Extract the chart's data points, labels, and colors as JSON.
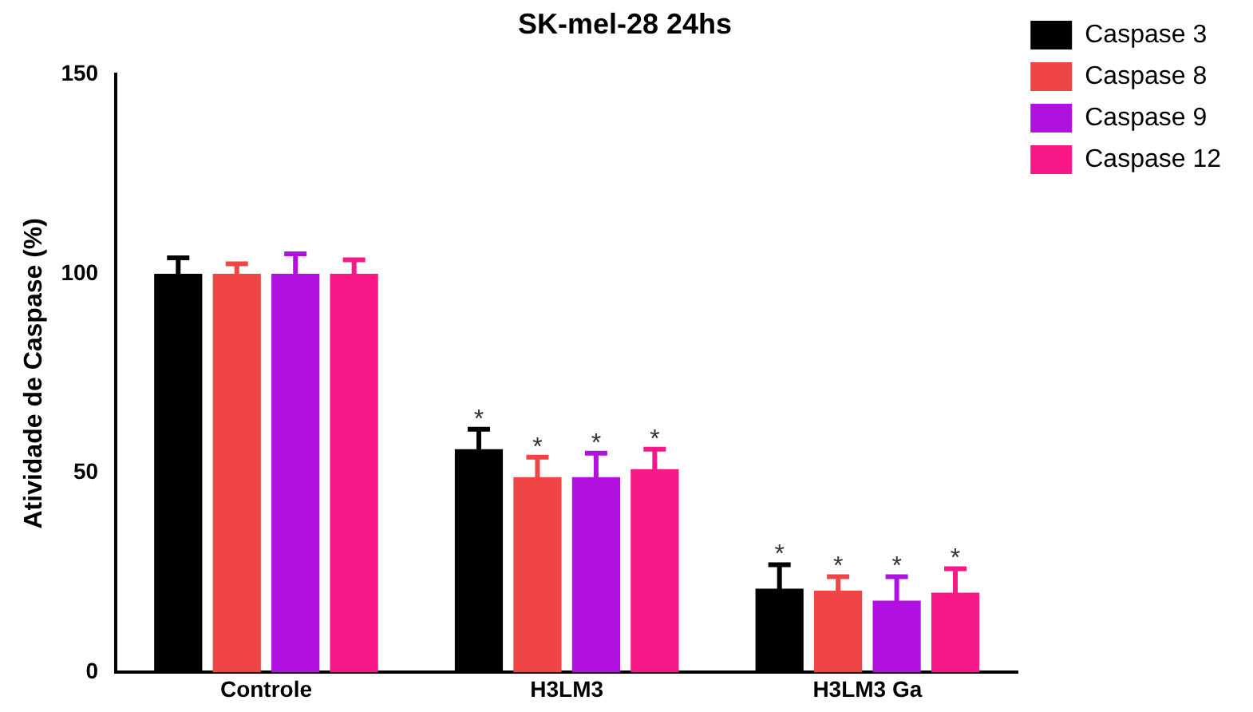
{
  "chart_data": {
    "type": "bar",
    "title": "SK-mel-28 24hs",
    "ylabel": "Atividade de Caspase (%)",
    "categories": [
      "Controle",
      "H3LM3",
      "H3LM3 Ga"
    ],
    "series": [
      {
        "name": "Caspase 3",
        "color": "#000000",
        "values": [
          100,
          56,
          21
        ],
        "errors": [
          4,
          5,
          6
        ]
      },
      {
        "name": "Caspase 8",
        "color": "#f04545",
        "values": [
          100,
          49,
          20.5
        ],
        "errors": [
          2.5,
          5,
          3.5
        ]
      },
      {
        "name": "Caspase 9",
        "color": "#b010e0",
        "values": [
          100,
          49,
          18
        ],
        "errors": [
          5,
          6,
          6
        ]
      },
      {
        "name": "Caspase 12",
        "color": "#f81888",
        "values": [
          100,
          51,
          20
        ],
        "errors": [
          3.5,
          5,
          6
        ]
      }
    ],
    "ylim": [
      0,
      150
    ],
    "yticks": [
      0,
      50,
      100,
      150
    ],
    "grid": false,
    "legend": "top right",
    "annotations": [
      "*",
      "*",
      "*",
      "*",
      "*",
      "*",
      "*",
      "*"
    ]
  }
}
